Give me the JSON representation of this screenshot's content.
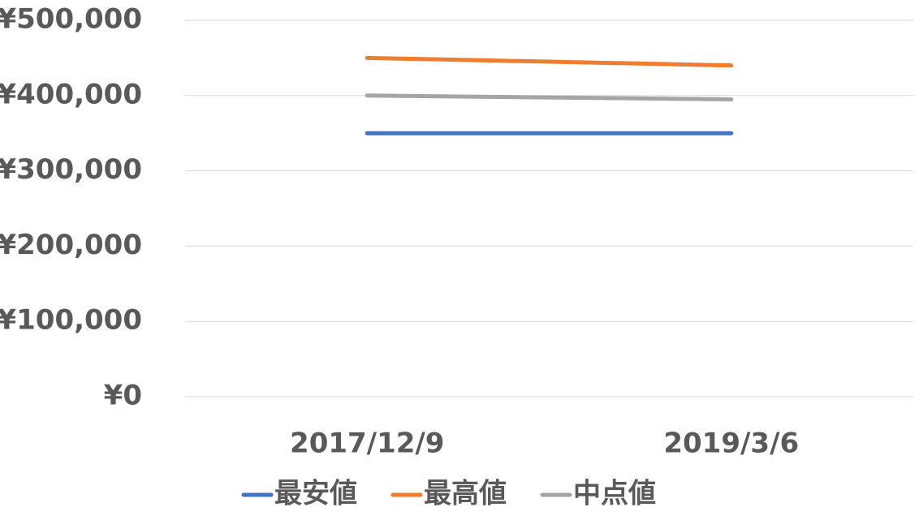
{
  "chart_data": {
    "type": "line",
    "categories": [
      "2017/12/9",
      "2019/3/6"
    ],
    "series": [
      {
        "name": "最安値",
        "color": "#4472c4",
        "values": [
          350000,
          350000
        ]
      },
      {
        "name": "最高値",
        "color": "#ed7d31",
        "values": [
          450000,
          440000
        ]
      },
      {
        "name": "中点値",
        "color": "#a5a5a5",
        "values": [
          400000,
          395000
        ]
      }
    ],
    "ylim": [
      0,
      500000
    ],
    "yticks": [
      {
        "value": 0,
        "label": "¥0"
      },
      {
        "value": 100000,
        "label": "¥100,000"
      },
      {
        "value": 200000,
        "label": "¥200,000"
      },
      {
        "value": 300000,
        "label": "¥300,000"
      },
      {
        "value": 400000,
        "label": "¥400,000"
      },
      {
        "value": 500000,
        "label": "¥500,000"
      }
    ],
    "grid": true,
    "legend": "bottom"
  }
}
